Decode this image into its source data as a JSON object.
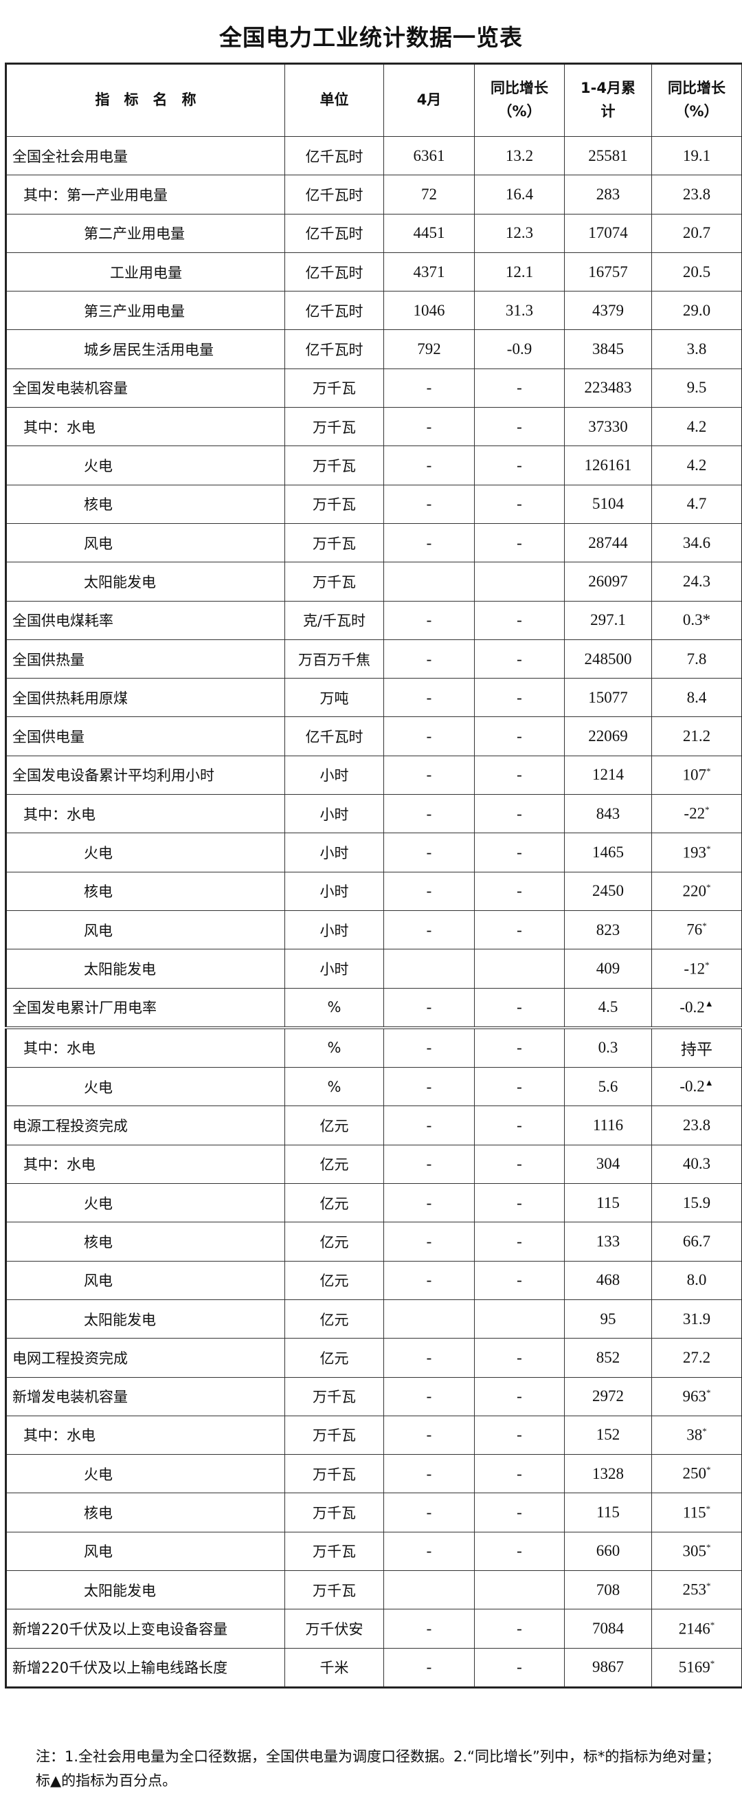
{
  "title": "全国电力工业统计数据一览表",
  "headers": {
    "name": "指　标　名　称",
    "unit": "单位",
    "month": "4月",
    "month_yoy": "同比增长（%）",
    "cum": "1-4月累计",
    "cum_yoy": "同比增长（%）"
  },
  "rows": [
    {
      "name": "全国全社会用电量",
      "indent": 0,
      "unit": "亿千瓦时",
      "month": "6361",
      "month_yoy": "13.2",
      "cum": "25581",
      "cum_yoy": "19.1",
      "mark": ""
    },
    {
      "name": "其中：第一产业用电量",
      "indent": 1,
      "unit": "亿千瓦时",
      "month": "72",
      "month_yoy": "16.4",
      "cum": "283",
      "cum_yoy": "23.8",
      "mark": ""
    },
    {
      "name": "第二产业用电量",
      "indent": 2,
      "unit": "亿千瓦时",
      "month": "4451",
      "month_yoy": "12.3",
      "cum": "17074",
      "cum_yoy": "20.7",
      "mark": ""
    },
    {
      "name": "工业用电量",
      "indent": 3,
      "unit": "亿千瓦时",
      "month": "4371",
      "month_yoy": "12.1",
      "cum": "16757",
      "cum_yoy": "20.5",
      "mark": ""
    },
    {
      "name": "第三产业用电量",
      "indent": 2,
      "unit": "亿千瓦时",
      "month": "1046",
      "month_yoy": "31.3",
      "cum": "4379",
      "cum_yoy": "29.0",
      "mark": ""
    },
    {
      "name": "城乡居民生活用电量",
      "indent": 2,
      "unit": "亿千瓦时",
      "month": "792",
      "month_yoy": "-0.9",
      "cum": "3845",
      "cum_yoy": "3.8",
      "mark": ""
    },
    {
      "name": "全国发电装机容量",
      "indent": 0,
      "unit": "万千瓦",
      "month": "-",
      "month_yoy": "-",
      "cum": "223483",
      "cum_yoy": "9.5",
      "mark": ""
    },
    {
      "name": "其中：水电",
      "indent": 1,
      "unit": "万千瓦",
      "month": "-",
      "month_yoy": "-",
      "cum": "37330",
      "cum_yoy": "4.2",
      "mark": ""
    },
    {
      "name": "火电",
      "indent": 2,
      "unit": "万千瓦",
      "month": "-",
      "month_yoy": "-",
      "cum": "126161",
      "cum_yoy": "4.2",
      "mark": ""
    },
    {
      "name": "核电",
      "indent": 2,
      "unit": "万千瓦",
      "month": "-",
      "month_yoy": "-",
      "cum": "5104",
      "cum_yoy": "4.7",
      "mark": ""
    },
    {
      "name": "风电",
      "indent": 2,
      "unit": "万千瓦",
      "month": "-",
      "month_yoy": "-",
      "cum": "28744",
      "cum_yoy": "34.6",
      "mark": ""
    },
    {
      "name": "太阳能发电",
      "indent": 2,
      "unit": "万千瓦",
      "month": "",
      "month_yoy": "",
      "cum": "26097",
      "cum_yoy": "24.3",
      "mark": ""
    },
    {
      "name": "全国供电煤耗率",
      "indent": 0,
      "unit": "克/千瓦时",
      "month": "-",
      "month_yoy": "-",
      "cum": "297.1",
      "cum_yoy": "0.3*",
      "mark": ""
    },
    {
      "name": "全国供热量",
      "indent": 0,
      "unit": "万百万千焦",
      "month": "-",
      "month_yoy": "-",
      "cum": "248500",
      "cum_yoy": "7.8",
      "mark": ""
    },
    {
      "name": "全国供热耗用原煤",
      "indent": 0,
      "unit": "万吨",
      "month": "-",
      "month_yoy": "-",
      "cum": "15077",
      "cum_yoy": "8.4",
      "mark": ""
    },
    {
      "name": "全国供电量",
      "indent": 0,
      "unit": "亿千瓦时",
      "month": "-",
      "month_yoy": "-",
      "cum": "22069",
      "cum_yoy": "21.2",
      "mark": ""
    },
    {
      "name": "全国发电设备累计平均利用小时",
      "indent": 0,
      "unit": "小时",
      "month": "-",
      "month_yoy": "-",
      "cum": "1214",
      "cum_yoy": "107",
      "mark": "*"
    },
    {
      "name": "其中：水电",
      "indent": 1,
      "unit": "小时",
      "month": "-",
      "month_yoy": "-",
      "cum": "843",
      "cum_yoy": "-22",
      "mark": "*"
    },
    {
      "name": "火电",
      "indent": 2,
      "unit": "小时",
      "month": "-",
      "month_yoy": "-",
      "cum": "1465",
      "cum_yoy": "193",
      "mark": "*"
    },
    {
      "name": "核电",
      "indent": 2,
      "unit": "小时",
      "month": "-",
      "month_yoy": "-",
      "cum": "2450",
      "cum_yoy": "220",
      "mark": "*"
    },
    {
      "name": "风电",
      "indent": 2,
      "unit": "小时",
      "month": "-",
      "month_yoy": "-",
      "cum": "823",
      "cum_yoy": "76",
      "mark": "*"
    },
    {
      "name": "太阳能发电",
      "indent": 2,
      "unit": "小时",
      "month": "",
      "month_yoy": "",
      "cum": "409",
      "cum_yoy": "-12",
      "mark": "*"
    },
    {
      "name": "全国发电累计厂用电率",
      "indent": 0,
      "unit": "%",
      "month": "-",
      "month_yoy": "-",
      "cum": "4.5",
      "cum_yoy": "-0.2",
      "mark": "▲"
    },
    {
      "name": "其中：水电",
      "indent": 1,
      "unit": "%",
      "month": "-",
      "month_yoy": "-",
      "cum": "0.3",
      "cum_yoy": "持平",
      "mark": ""
    },
    {
      "name": "火电",
      "indent": 2,
      "unit": "%",
      "month": "-",
      "month_yoy": "-",
      "cum": "5.6",
      "cum_yoy": "-0.2",
      "mark": "▲"
    },
    {
      "name": "电源工程投资完成",
      "indent": 0,
      "unit": "亿元",
      "month": "-",
      "month_yoy": "-",
      "cum": "1116",
      "cum_yoy": "23.8",
      "mark": ""
    },
    {
      "name": "其中：水电",
      "indent": 1,
      "unit": "亿元",
      "month": "-",
      "month_yoy": "-",
      "cum": "304",
      "cum_yoy": "40.3",
      "mark": ""
    },
    {
      "name": "火电",
      "indent": 2,
      "unit": "亿元",
      "month": "-",
      "month_yoy": "-",
      "cum": "115",
      "cum_yoy": "15.9",
      "mark": ""
    },
    {
      "name": "核电",
      "indent": 2,
      "unit": "亿元",
      "month": "-",
      "month_yoy": "-",
      "cum": "133",
      "cum_yoy": "66.7",
      "mark": ""
    },
    {
      "name": "风电",
      "indent": 2,
      "unit": "亿元",
      "month": "-",
      "month_yoy": "-",
      "cum": "468",
      "cum_yoy": "8.0",
      "mark": ""
    },
    {
      "name": "太阳能发电",
      "indent": 2,
      "unit": "亿元",
      "month": "",
      "month_yoy": "",
      "cum": "95",
      "cum_yoy": "31.9",
      "mark": ""
    },
    {
      "name": "电网工程投资完成",
      "indent": 0,
      "unit": "亿元",
      "month": "-",
      "month_yoy": "-",
      "cum": "852",
      "cum_yoy": "27.2",
      "mark": ""
    },
    {
      "name": "新增发电装机容量",
      "indent": 0,
      "unit": "万千瓦",
      "month": "-",
      "month_yoy": "-",
      "cum": "2972",
      "cum_yoy": "963",
      "mark": "*"
    },
    {
      "name": "其中：水电",
      "indent": 1,
      "unit": "万千瓦",
      "month": "-",
      "month_yoy": "-",
      "cum": "152",
      "cum_yoy": "38",
      "mark": "*"
    },
    {
      "name": "火电",
      "indent": 2,
      "unit": "万千瓦",
      "month": "-",
      "month_yoy": "-",
      "cum": "1328",
      "cum_yoy": "250",
      "mark": "*"
    },
    {
      "name": "核电",
      "indent": 2,
      "unit": "万千瓦",
      "month": "-",
      "month_yoy": "-",
      "cum": "115",
      "cum_yoy": "115",
      "mark": "*"
    },
    {
      "name": "风电",
      "indent": 2,
      "unit": "万千瓦",
      "month": "-",
      "month_yoy": "-",
      "cum": "660",
      "cum_yoy": "305",
      "mark": "*"
    },
    {
      "name": "太阳能发电",
      "indent": 2,
      "unit": "万千瓦",
      "month": "",
      "month_yoy": "",
      "cum": "708",
      "cum_yoy": "253",
      "mark": "*"
    },
    {
      "name": "新增220千伏及以上变电设备容量",
      "indent": 0,
      "unit": "万千伏安",
      "month": "-",
      "month_yoy": "-",
      "cum": "7084",
      "cum_yoy": "2146",
      "mark": "*"
    },
    {
      "name": "新增220千伏及以上输电线路长度",
      "indent": 0,
      "unit": "千米",
      "month": "-",
      "month_yoy": "-",
      "cum": "9867",
      "cum_yoy": "5169",
      "mark": "*"
    }
  ],
  "note": "注：1.全社会用电量为全口径数据，全国供电量为调度口径数据。2.“同比增长”列中，标*的指标为绝对量；标▲的指标为百分点。"
}
